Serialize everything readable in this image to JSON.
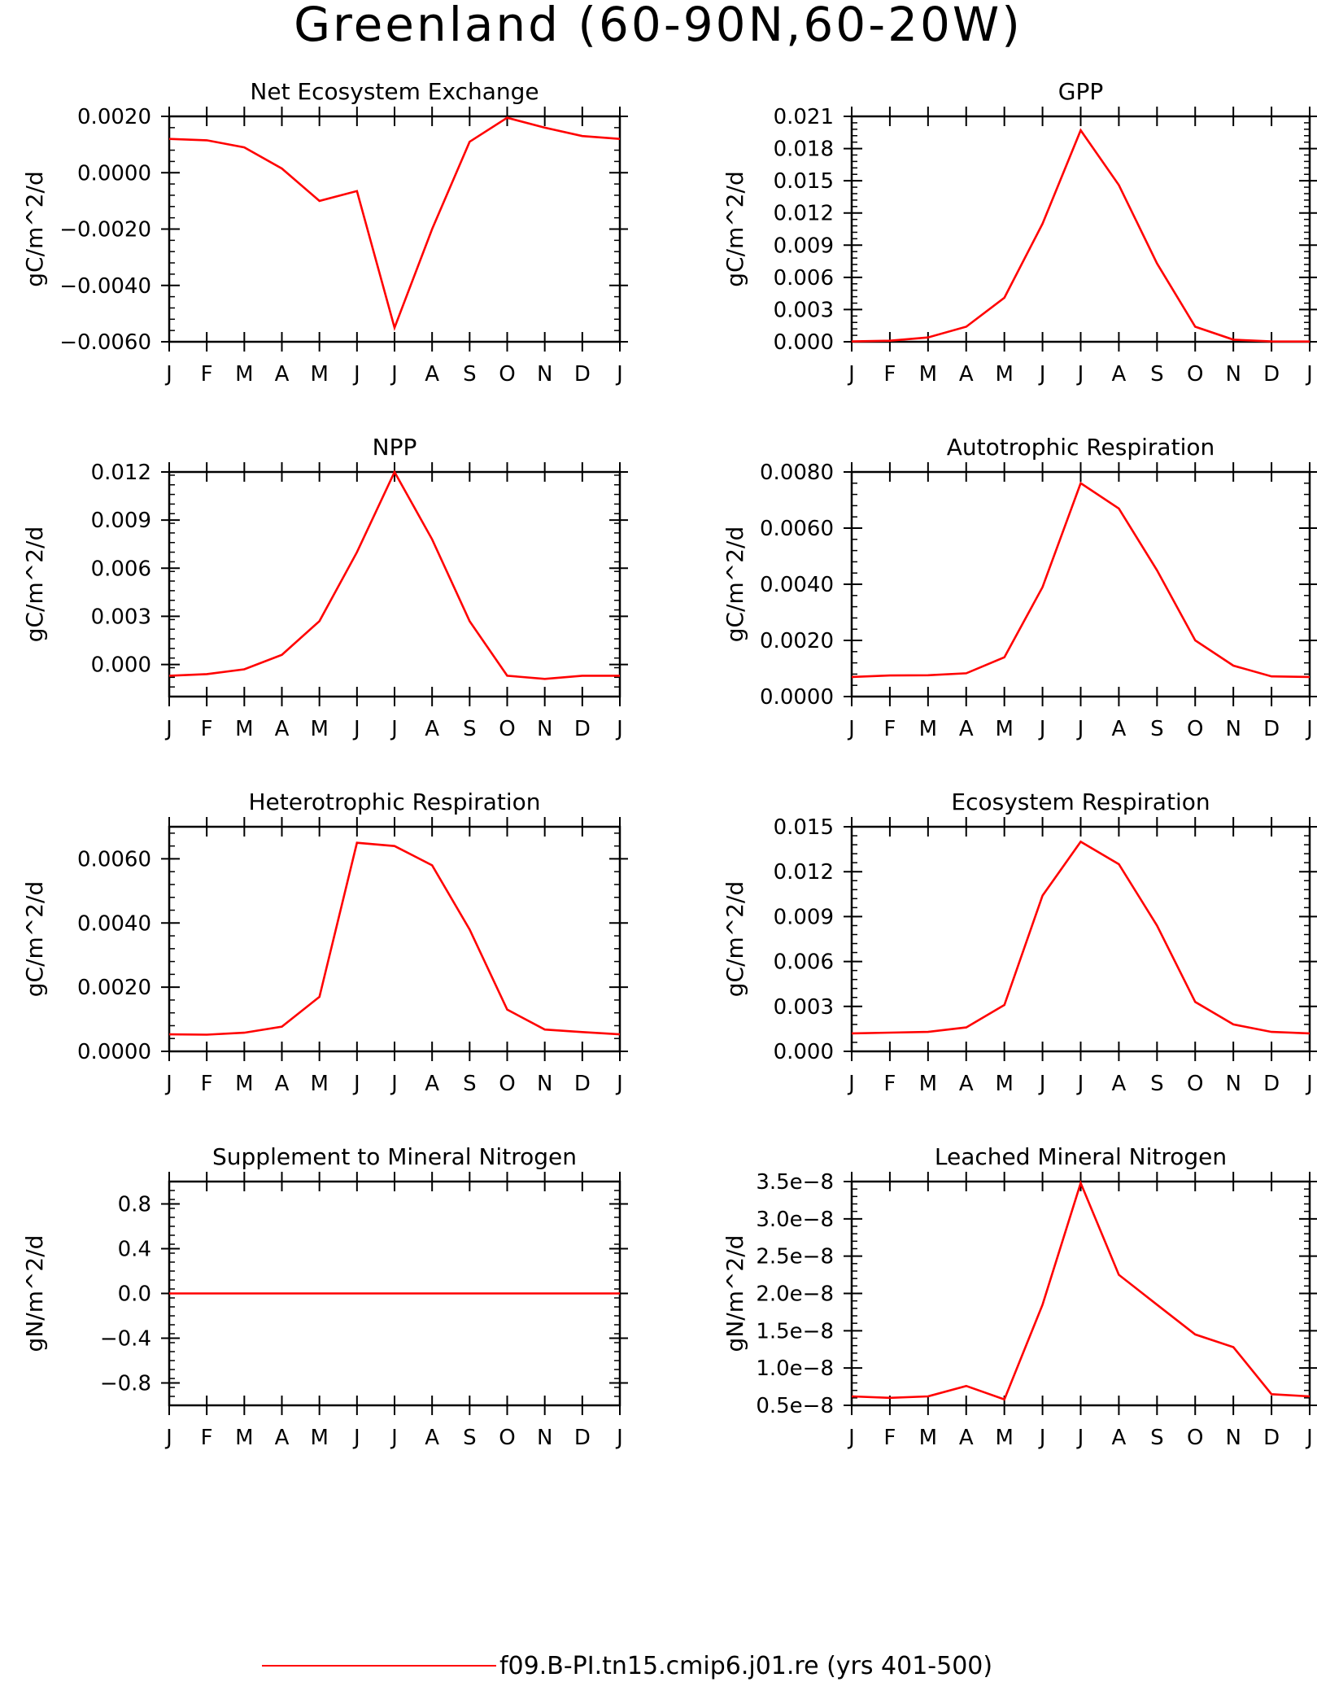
{
  "figure_title": "Greenland (60-90N,60-20W)",
  "legend": {
    "label": "f09.B-PI.tn15.cmip6.j01.re (yrs 401-500)",
    "color": "#ff0000"
  },
  "series_color": "#ff0000",
  "chart_data": [
    {
      "type": "line",
      "title": "Net Ecosystem Exchange",
      "ylabel": "gC/m^2/d",
      "categories": [
        "J",
        "F",
        "M",
        "A",
        "M",
        "J",
        "J",
        "A",
        "S",
        "O",
        "N",
        "D",
        "J"
      ],
      "values": [
        0.0012,
        0.00115,
        0.0009,
        0.00015,
        -0.001,
        -0.00065,
        -0.0055,
        -0.002,
        0.0011,
        0.00195,
        0.0016,
        0.0013,
        0.0012
      ],
      "ylim": [
        -0.006,
        0.002
      ],
      "yticks": [
        -0.006,
        -0.004,
        -0.002,
        0.0,
        0.002
      ],
      "ytick_labels": [
        "−0.0060",
        "−0.0040",
        "−0.0020",
        "0.0000",
        "0.0020"
      ],
      "series_name": "f09.B-PI.tn15.cmip6.j01.re (yrs 401-500)"
    },
    {
      "type": "line",
      "title": "GPP",
      "ylabel": "gC/m^2/d",
      "categories": [
        "J",
        "F",
        "M",
        "A",
        "M",
        "J",
        "J",
        "A",
        "S",
        "O",
        "N",
        "D",
        "J"
      ],
      "values": [
        3e-05,
        0.0001,
        0.0004,
        0.0014,
        0.0041,
        0.011,
        0.0197,
        0.0146,
        0.0073,
        0.0014,
        0.0002,
        3e-05,
        2e-05
      ],
      "ylim": [
        0,
        0.021
      ],
      "yticks": [
        0,
        0.003,
        0.006,
        0.009,
        0.012,
        0.015,
        0.018,
        0.021
      ],
      "ytick_labels": [
        "0.000",
        "0.003",
        "0.006",
        "0.009",
        "0.012",
        "0.015",
        "0.018",
        "0.021"
      ],
      "series_name": "f09.B-PI.tn15.cmip6.j01.re (yrs 401-500)"
    },
    {
      "type": "line",
      "title": "NPP",
      "ylabel": "gC/m^2/d",
      "categories": [
        "J",
        "F",
        "M",
        "A",
        "M",
        "J",
        "J",
        "A",
        "S",
        "O",
        "N",
        "D",
        "J"
      ],
      "values": [
        -0.0007,
        -0.0006,
        -0.0003,
        0.0006,
        0.0027,
        0.007,
        0.012,
        0.0078,
        0.0027,
        -0.0007,
        -0.0009,
        -0.0007,
        -0.0007
      ],
      "ylim": [
        -0.002,
        0.012
      ],
      "yticks": [
        0,
        0.003,
        0.006,
        0.009,
        0.012
      ],
      "ytick_labels": [
        "0.000",
        "0.003",
        "0.006",
        "0.009",
        "0.012"
      ],
      "series_name": "f09.B-PI.tn15.cmip6.j01.re (yrs 401-500)"
    },
    {
      "type": "line",
      "title": "Autotrophic Respiration",
      "ylabel": "gC/m^2/d",
      "categories": [
        "J",
        "F",
        "M",
        "A",
        "M",
        "J",
        "J",
        "A",
        "S",
        "O",
        "N",
        "D",
        "J"
      ],
      "values": [
        0.0007,
        0.00075,
        0.00076,
        0.00083,
        0.0014,
        0.0039,
        0.0076,
        0.0067,
        0.0045,
        0.002,
        0.0011,
        0.00072,
        0.0007
      ],
      "ylim": [
        0,
        0.008
      ],
      "yticks": [
        0,
        0.002,
        0.004,
        0.006,
        0.008
      ],
      "ytick_labels": [
        "0.0000",
        "0.0020",
        "0.0040",
        "0.0060",
        "0.0080"
      ],
      "series_name": "f09.B-PI.tn15.cmip6.j01.re (yrs 401-500)"
    },
    {
      "type": "line",
      "title": "Heterotrophic Respiration",
      "ylabel": "gC/m^2/d",
      "categories": [
        "J",
        "F",
        "M",
        "A",
        "M",
        "J",
        "J",
        "A",
        "S",
        "O",
        "N",
        "D",
        "J"
      ],
      "values": [
        0.00053,
        0.00052,
        0.00058,
        0.00077,
        0.0017,
        0.0065,
        0.0064,
        0.0058,
        0.0038,
        0.0013,
        0.00068,
        0.0006,
        0.00053
      ],
      "ylim": [
        0,
        0.007
      ],
      "yticks": [
        0,
        0.002,
        0.004,
        0.006
      ],
      "ytick_labels": [
        "0.0000",
        "0.0020",
        "0.0040",
        "0.0060"
      ],
      "series_name": "f09.B-PI.tn15.cmip6.j01.re (yrs 401-500)"
    },
    {
      "type": "line",
      "title": "Ecosystem Respiration",
      "ylabel": "gC/m^2/d",
      "categories": [
        "J",
        "F",
        "M",
        "A",
        "M",
        "J",
        "J",
        "A",
        "S",
        "O",
        "N",
        "D",
        "J"
      ],
      "values": [
        0.0012,
        0.00125,
        0.0013,
        0.0016,
        0.0031,
        0.0104,
        0.014,
        0.0125,
        0.0084,
        0.0033,
        0.0018,
        0.0013,
        0.0012
      ],
      "ylim": [
        0,
        0.015
      ],
      "yticks": [
        0,
        0.003,
        0.006,
        0.009,
        0.012,
        0.015
      ],
      "ytick_labels": [
        "0.000",
        "0.003",
        "0.006",
        "0.009",
        "0.012",
        "0.015"
      ],
      "series_name": "f09.B-PI.tn15.cmip6.j01.re (yrs 401-500)"
    },
    {
      "type": "line",
      "title": "Supplement to Mineral Nitrogen",
      "ylabel": "gN/m^2/d",
      "categories": [
        "J",
        "F",
        "M",
        "A",
        "M",
        "J",
        "J",
        "A",
        "S",
        "O",
        "N",
        "D",
        "J"
      ],
      "values": [
        0,
        0,
        0,
        0,
        0,
        0,
        0,
        0,
        0,
        0,
        0,
        0,
        0
      ],
      "ylim": [
        -1,
        1
      ],
      "yticks": [
        -0.8,
        -0.4,
        0,
        0.4,
        0.8
      ],
      "ytick_labels": [
        "−0.8",
        "−0.4",
        "0.0",
        "0.4",
        "0.8"
      ],
      "series_name": "f09.B-PI.tn15.cmip6.j01.re (yrs 401-500)"
    },
    {
      "type": "line",
      "title": "Leached Mineral Nitrogen",
      "ylabel": "gN/m^2/d",
      "categories": [
        "J",
        "F",
        "M",
        "A",
        "M",
        "J",
        "J",
        "A",
        "S",
        "O",
        "N",
        "D",
        "J"
      ],
      "values": [
        6.2e-09,
        6e-09,
        6.2e-09,
        7.6e-09,
        5.8e-09,
        1.85e-08,
        3.48e-08,
        2.25e-08,
        1.85e-08,
        1.45e-08,
        1.28e-08,
        6.5e-09,
        6.2e-09
      ],
      "ylim": [
        5e-09,
        3.5e-08
      ],
      "yticks": [
        5e-09,
        1e-08,
        1.5e-08,
        2e-08,
        2.5e-08,
        3e-08,
        3.5e-08
      ],
      "ytick_labels": [
        "0.5e−8",
        "1.0e−8",
        "1.5e−8",
        "2.0e−8",
        "2.5e−8",
        "3.0e−8",
        "3.5e−8"
      ],
      "series_name": "f09.B-PI.tn15.cmip6.j01.re (yrs 401-500)"
    }
  ]
}
